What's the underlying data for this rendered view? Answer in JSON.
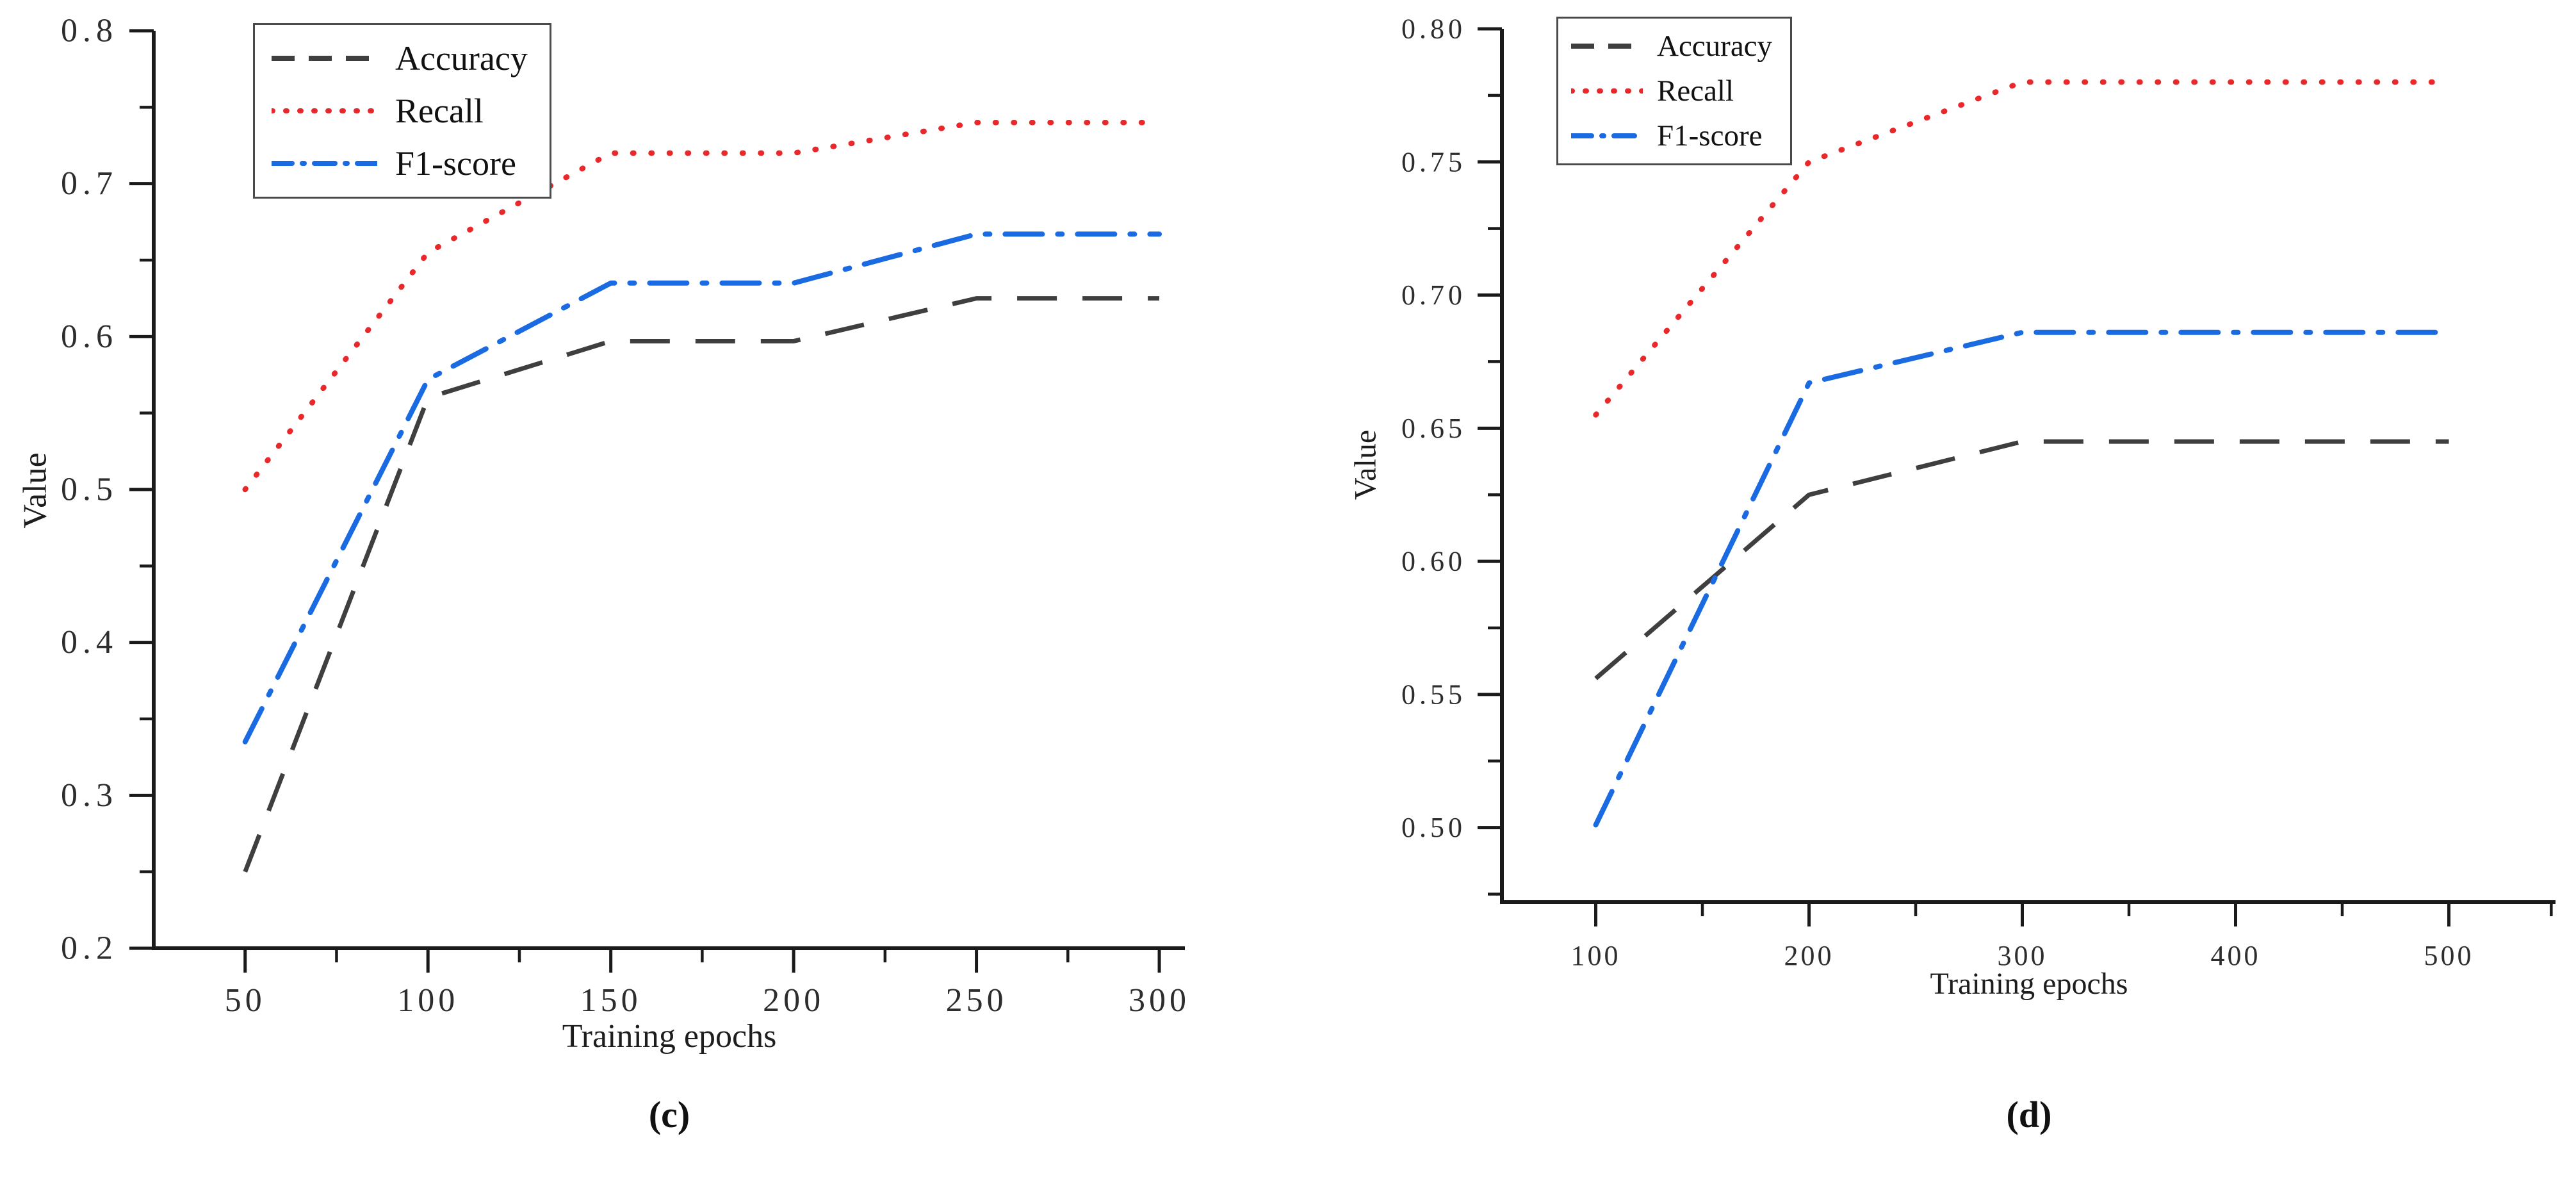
{
  "figure": {
    "background": "#ffffff",
    "panels": [
      {
        "caption": "(c)",
        "xlabel": "Training epochs",
        "ylabel": "Value"
      },
      {
        "caption": "(d)",
        "xlabel": "Training epochs",
        "ylabel": "Value"
      }
    ]
  },
  "colors": {
    "accuracy": "#3f3f3f",
    "recall": "#e9282c",
    "f1": "#1a6be2",
    "axis": "#1a1a1a",
    "tick_text": "#2d2d2d"
  },
  "chart_data": [
    {
      "type": "line",
      "title": "",
      "caption": "(c)",
      "xlabel": "Training epochs",
      "ylabel": "Value",
      "x": [
        50,
        100,
        150,
        200,
        250,
        300
      ],
      "series": [
        {
          "name": "Accuracy",
          "color": "#3f3f3f",
          "style": "dashed",
          "values": [
            0.25,
            0.56,
            0.597,
            0.597,
            0.625,
            0.625
          ]
        },
        {
          "name": "Recall",
          "color": "#e9282c",
          "style": "dotted",
          "values": [
            0.5,
            0.655,
            0.72,
            0.72,
            0.74,
            0.74
          ]
        },
        {
          "name": "F1-score",
          "color": "#1a6be2",
          "style": "dashdot",
          "values": [
            0.335,
            0.572,
            0.635,
            0.635,
            0.667,
            0.667
          ]
        }
      ],
      "xlim": [
        25,
        307
      ],
      "ylim": [
        0.2,
        0.8
      ],
      "xticks": [
        50,
        100,
        150,
        200,
        250,
        300
      ],
      "xminor": [
        75,
        125,
        175,
        225,
        275
      ],
      "yticks": [
        0.2,
        0.3,
        0.4,
        0.5,
        0.6,
        0.7,
        0.8
      ],
      "ytick_labels": [
        "0.2",
        "0.3",
        "0.4",
        "0.5",
        "0.6",
        "0.7",
        "0.8"
      ],
      "yminor": [
        0.25,
        0.35,
        0.45,
        0.55,
        0.65,
        0.75
      ],
      "legend_position": "upper left",
      "grid": false
    },
    {
      "type": "line",
      "title": "",
      "caption": "(d)",
      "xlabel": "Training epochs",
      "ylabel": "Value",
      "x": [
        100,
        200,
        300,
        400,
        500
      ],
      "series": [
        {
          "name": "Accuracy",
          "color": "#3f3f3f",
          "style": "dashed",
          "values": [
            0.556,
            0.625,
            0.645,
            0.645,
            0.645
          ]
        },
        {
          "name": "Recall",
          "color": "#e9282c",
          "style": "dotted",
          "values": [
            0.655,
            0.75,
            0.78,
            0.78,
            0.78
          ]
        },
        {
          "name": "F1-score",
          "color": "#1a6be2",
          "style": "dashdot",
          "values": [
            0.501,
            0.667,
            0.686,
            0.686,
            0.686
          ]
        }
      ],
      "xlim": [
        56,
        550
      ],
      "ylim": [
        0.472,
        0.8
      ],
      "xticks": [
        100,
        200,
        300,
        400,
        500
      ],
      "xminor": [
        150,
        250,
        350,
        450,
        548
      ],
      "yticks": [
        0.5,
        0.55,
        0.6,
        0.65,
        0.7,
        0.75,
        0.8
      ],
      "ytick_labels": [
        "0.50",
        "0.55",
        "0.60",
        "0.65",
        "0.70",
        "0.75",
        "0.80"
      ],
      "yminor": [
        0.475,
        0.525,
        0.575,
        0.625,
        0.675,
        0.725,
        0.775
      ],
      "legend_position": "upper left",
      "grid": false
    }
  ]
}
